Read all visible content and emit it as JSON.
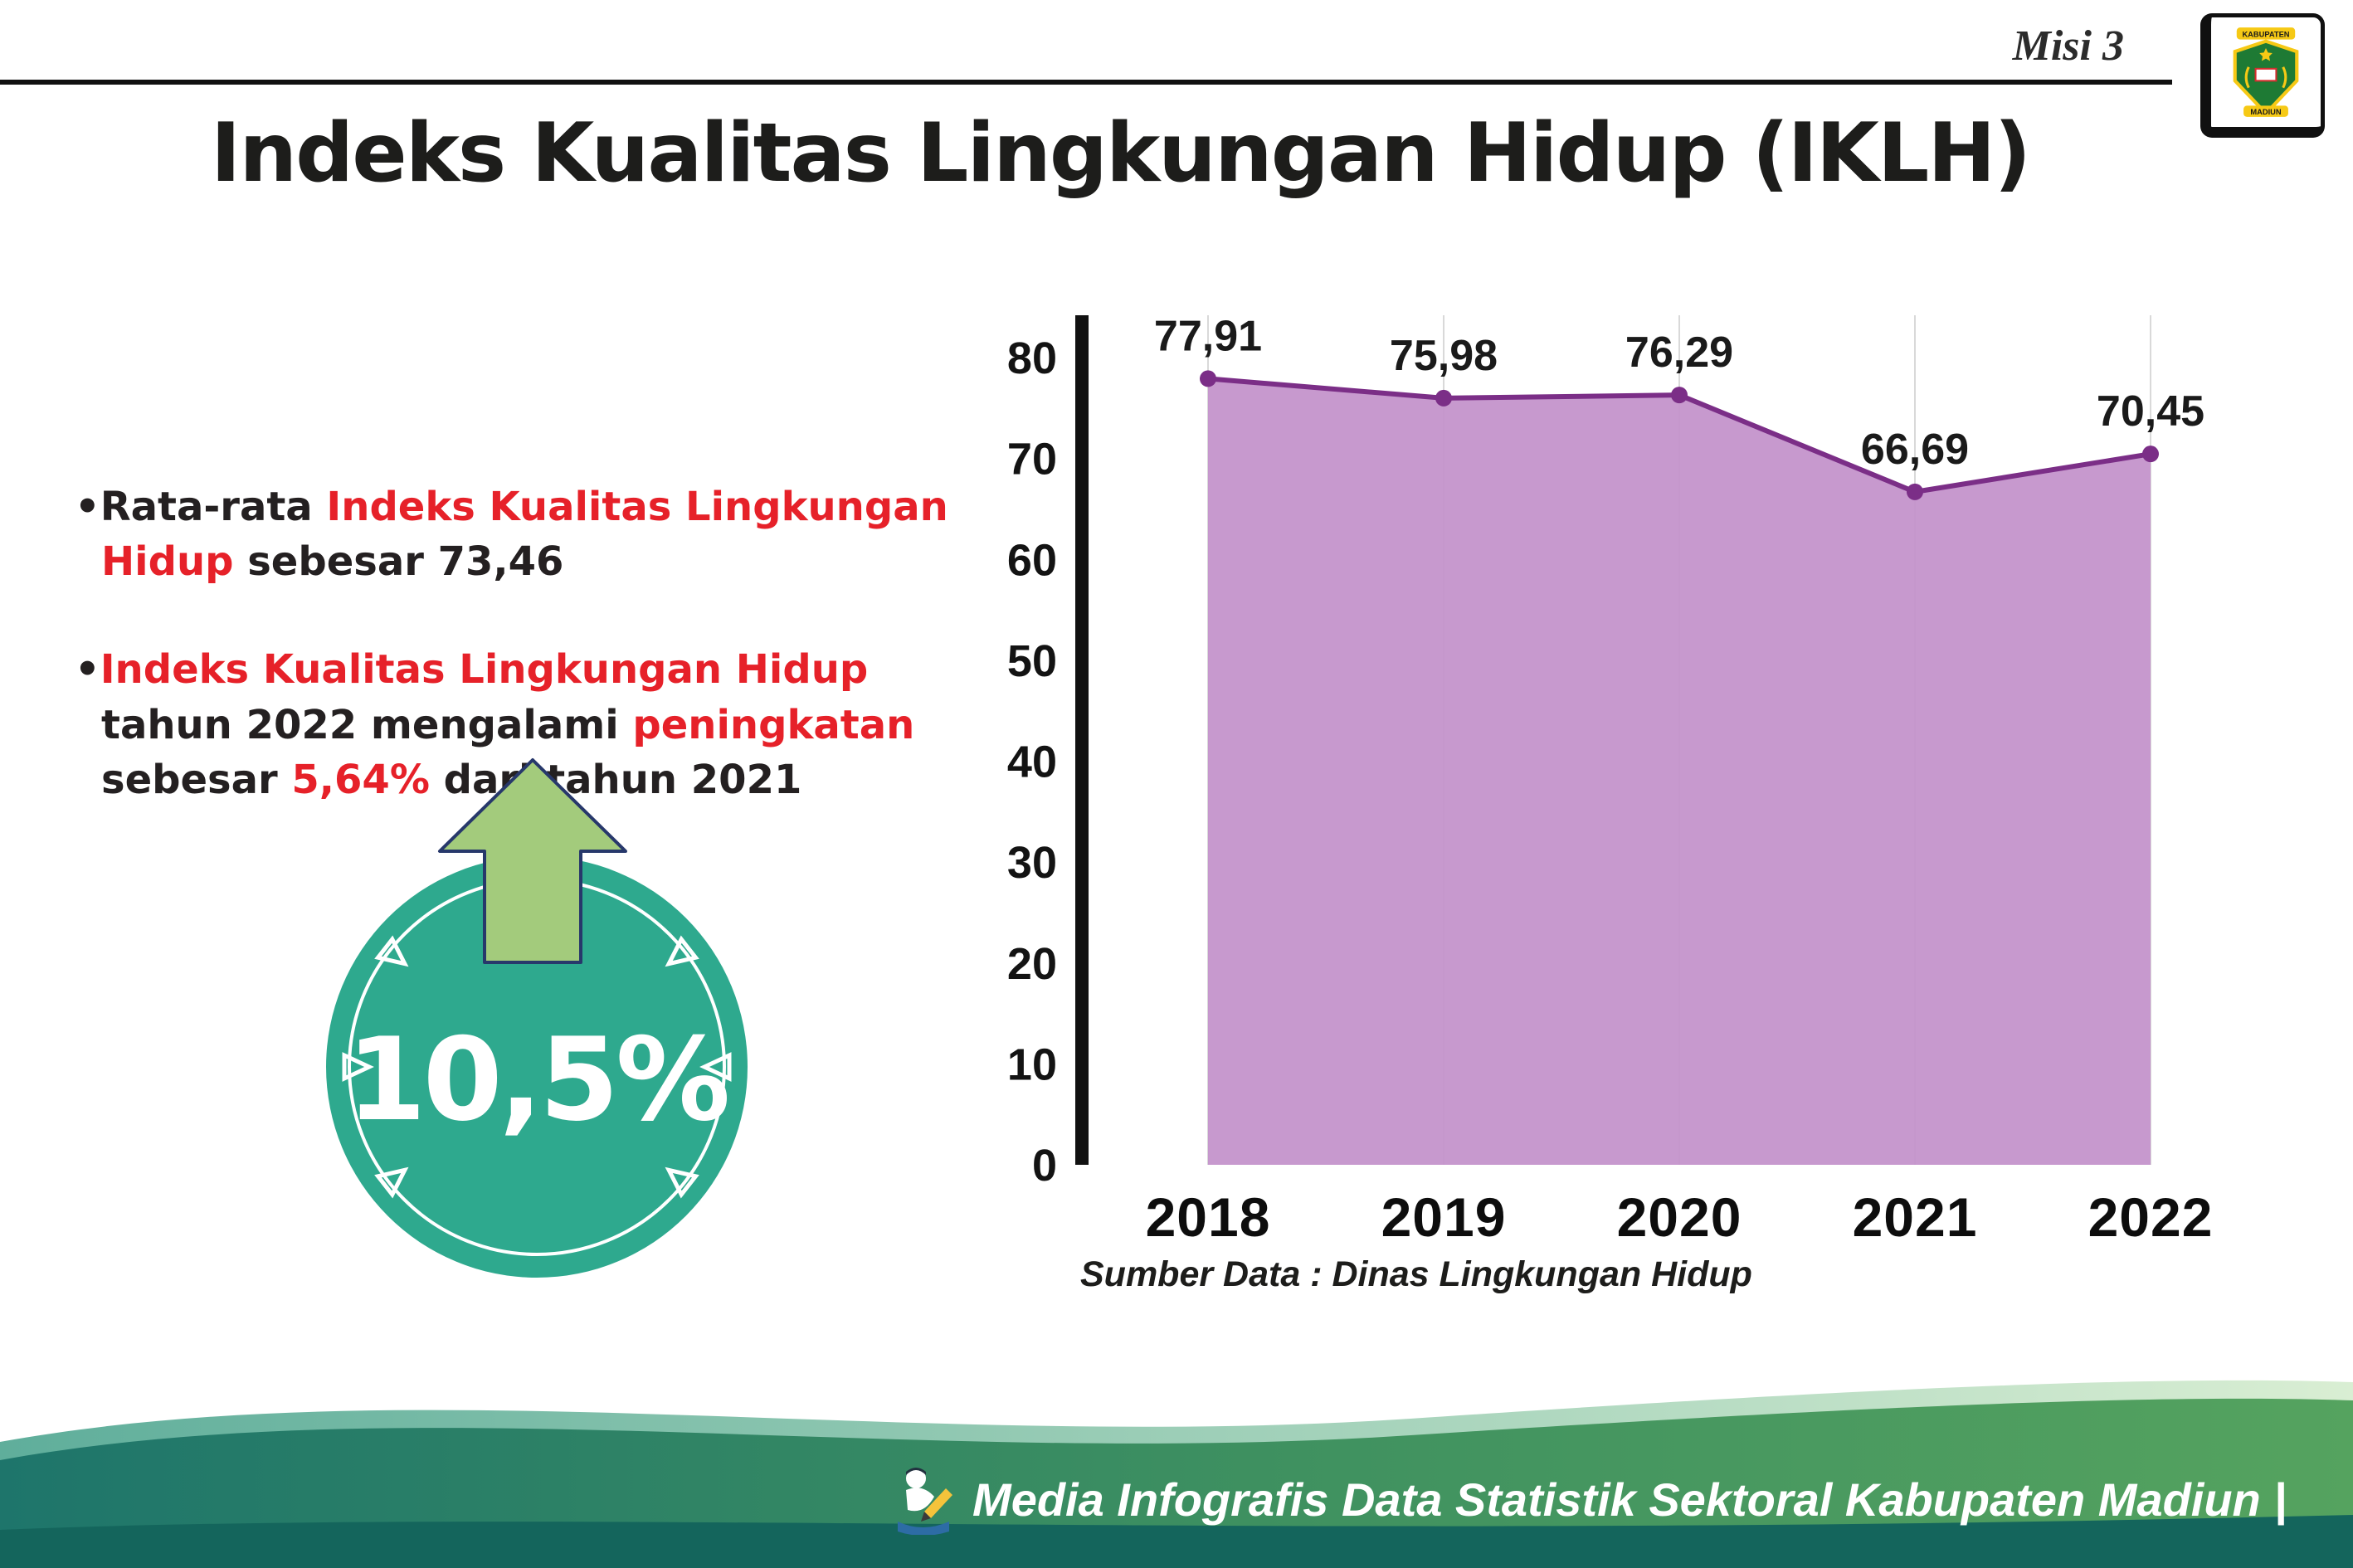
{
  "header": {
    "misi": "Misi 3",
    "title": "Indeks Kualitas Lingkungan Hidup (IKLH)"
  },
  "logo": {
    "top_text": "KABUPATEN",
    "bottom_text": "MADIUN"
  },
  "bullets": [
    {
      "segments": [
        {
          "text": "Rata-rata ",
          "color": "dark"
        },
        {
          "text": "Indeks Kualitas Lingkungan Hidup",
          "color": "red"
        },
        {
          "text": " sebesar 73,46",
          "color": "dark"
        }
      ]
    },
    {
      "segments": [
        {
          "text": "Indeks Kualitas Lingkungan Hidup",
          "color": "red"
        },
        {
          "text": " tahun 2022 mengalami ",
          "color": "dark"
        },
        {
          "text": "peningkatan",
          "color": "red"
        },
        {
          "text": " sebesar ",
          "color": "dark"
        },
        {
          "text": "5,64%",
          "color": "red"
        },
        {
          "text": " dari tahun 2021",
          "color": "dark"
        }
      ]
    }
  ],
  "badge": {
    "value": "10,5%"
  },
  "chart_data": {
    "type": "area",
    "title": "Indeks Kualitas Lingkungan Hidup (IKLH)",
    "categories": [
      "2018",
      "2019",
      "2020",
      "2021",
      "2022"
    ],
    "values": [
      77.91,
      75.98,
      76.29,
      66.69,
      70.45
    ],
    "point_labels": [
      "77,91",
      "75,98",
      "76,29",
      "66,69",
      "70,45"
    ],
    "ylim": [
      0,
      80
    ],
    "yticks": [
      0,
      10,
      20,
      30,
      40,
      50,
      60,
      70,
      80
    ],
    "grid": "vertical",
    "legend": "none",
    "fill_color": "#c493cb",
    "line_color": "#7b2e87",
    "source": "Sumber Data : Dinas Lingkungan Hidup"
  },
  "footer": {
    "caption": "Media Infografis Data Statistik Sektoral Kabupaten Madiun |"
  },
  "colors": {
    "accent_red": "#e62129",
    "badge_teal": "#2ea98e",
    "arrow_green": "#a3cb7c",
    "footer_dark_teal": "#14655c",
    "footer_green": "#55a35f"
  }
}
